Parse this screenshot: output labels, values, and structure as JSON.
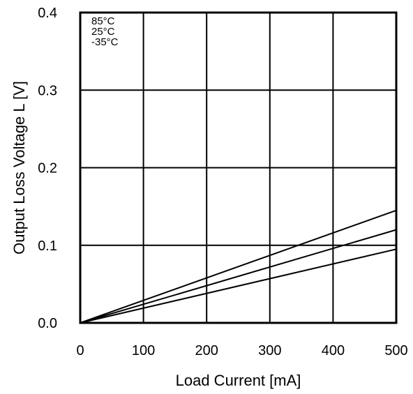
{
  "chart_data": {
    "type": "line",
    "title": "",
    "xlabel": "Load Current [mA]",
    "ylabel": "Output Loss Voltage L [V]",
    "xlim": [
      0,
      500
    ],
    "ylim": [
      0,
      0.4
    ],
    "grid": true,
    "x_ticks": [
      "0",
      "100",
      "200",
      "300",
      "400",
      "500"
    ],
    "y_ticks": [
      "0.0",
      "0.1",
      "0.2",
      "0.3",
      "0.4"
    ],
    "legend": [
      "85°C",
      "25°C",
      "-35°C"
    ],
    "legend_position": "top-left",
    "series": [
      {
        "name": "85°C",
        "x": [
          0,
          500
        ],
        "y": [
          0,
          0.145
        ]
      },
      {
        "name": "25°C",
        "x": [
          0,
          500
        ],
        "y": [
          0,
          0.12
        ]
      },
      {
        "name": "-35°C",
        "x": [
          0,
          500
        ],
        "y": [
          0,
          0.095
        ]
      }
    ]
  }
}
